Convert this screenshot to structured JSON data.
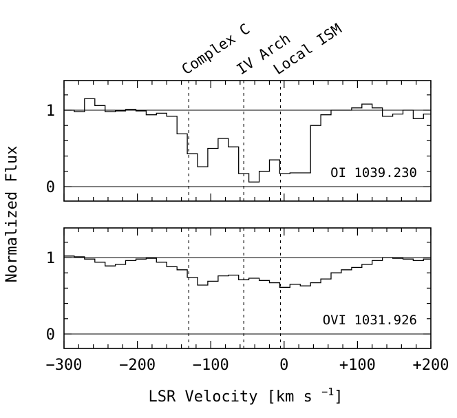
{
  "chart_data": {
    "type": "line",
    "title": "",
    "xlabel": "LSR Velocity [km s",
    "xlabel_sup": "−1",
    "xlabel_end": "]",
    "ylabel": "Normalized Flux",
    "xlim": [
      -300,
      200
    ],
    "x_ticks": [
      -300,
      -200,
      -100,
      0,
      100,
      200
    ],
    "x_tick_labels": [
      "−300",
      "−200",
      "−100",
      "0",
      "+100",
      "+200"
    ],
    "components": [
      {
        "name": "Complex C",
        "velocity": -130
      },
      {
        "name": "IV Arch",
        "velocity": -55
      },
      {
        "name": "Local ISM",
        "velocity": -5
      }
    ],
    "panels": [
      {
        "name": "OI 1039.230",
        "label": "OI  1039.230",
        "ylim": [
          -0.2,
          1.4
        ],
        "y_ticks": [
          0,
          1
        ],
        "y_tick_labels": [
          "0",
          "1"
        ],
        "reference_lines": [
          0,
          1
        ],
        "step_series": [
          {
            "x": -300,
            "y": 1.0
          },
          {
            "x": -286,
            "y": 0.98
          },
          {
            "x": -272,
            "y": 1.15
          },
          {
            "x": -258,
            "y": 1.06
          },
          {
            "x": -244,
            "y": 0.98
          },
          {
            "x": -230,
            "y": 0.99
          },
          {
            "x": -216,
            "y": 1.01
          },
          {
            "x": -202,
            "y": 0.99
          },
          {
            "x": -188,
            "y": 0.94
          },
          {
            "x": -174,
            "y": 0.96
          },
          {
            "x": -160,
            "y": 0.92
          },
          {
            "x": -146,
            "y": 0.69
          },
          {
            "x": -132,
            "y": 0.43
          },
          {
            "x": -118,
            "y": 0.26
          },
          {
            "x": -104,
            "y": 0.5
          },
          {
            "x": -90,
            "y": 0.63
          },
          {
            "x": -76,
            "y": 0.52
          },
          {
            "x": -62,
            "y": 0.17
          },
          {
            "x": -48,
            "y": 0.06
          },
          {
            "x": -34,
            "y": 0.2
          },
          {
            "x": -20,
            "y": 0.35
          },
          {
            "x": -6,
            "y": 0.17
          },
          {
            "x": 8,
            "y": 0.18
          },
          {
            "x": 22,
            "y": 0.18
          },
          {
            "x": 36,
            "y": 0.8
          },
          {
            "x": 50,
            "y": 0.94
          },
          {
            "x": 64,
            "y": 1.0
          },
          {
            "x": 78,
            "y": 1.0
          },
          {
            "x": 92,
            "y": 1.03
          },
          {
            "x": 106,
            "y": 1.08
          },
          {
            "x": 120,
            "y": 1.03
          },
          {
            "x": 134,
            "y": 0.92
          },
          {
            "x": 148,
            "y": 0.95
          },
          {
            "x": 162,
            "y": 1.0
          },
          {
            "x": 176,
            "y": 0.89
          },
          {
            "x": 190,
            "y": 0.95
          }
        ]
      },
      {
        "name": "OVI 1031.926",
        "label": "OVI  1031.926",
        "ylim": [
          -0.2,
          1.4
        ],
        "y_ticks": [
          0,
          1
        ],
        "y_tick_labels": [
          "0",
          "1"
        ],
        "reference_lines": [
          0,
          1
        ],
        "step_series": [
          {
            "x": -300,
            "y": 1.02
          },
          {
            "x": -286,
            "y": 1.01
          },
          {
            "x": -272,
            "y": 0.98
          },
          {
            "x": -258,
            "y": 0.94
          },
          {
            "x": -244,
            "y": 0.89
          },
          {
            "x": -230,
            "y": 0.91
          },
          {
            "x": -216,
            "y": 0.96
          },
          {
            "x": -202,
            "y": 0.98
          },
          {
            "x": -188,
            "y": 0.99
          },
          {
            "x": -174,
            "y": 0.94
          },
          {
            "x": -160,
            "y": 0.88
          },
          {
            "x": -146,
            "y": 0.84
          },
          {
            "x": -132,
            "y": 0.74
          },
          {
            "x": -118,
            "y": 0.64
          },
          {
            "x": -104,
            "y": 0.69
          },
          {
            "x": -90,
            "y": 0.76
          },
          {
            "x": -76,
            "y": 0.77
          },
          {
            "x": -62,
            "y": 0.71
          },
          {
            "x": -48,
            "y": 0.73
          },
          {
            "x": -34,
            "y": 0.7
          },
          {
            "x": -20,
            "y": 0.67
          },
          {
            "x": -6,
            "y": 0.61
          },
          {
            "x": 8,
            "y": 0.65
          },
          {
            "x": 22,
            "y": 0.63
          },
          {
            "x": 36,
            "y": 0.67
          },
          {
            "x": 50,
            "y": 0.72
          },
          {
            "x": 64,
            "y": 0.8
          },
          {
            "x": 78,
            "y": 0.84
          },
          {
            "x": 92,
            "y": 0.87
          },
          {
            "x": 106,
            "y": 0.91
          },
          {
            "x": 120,
            "y": 0.96
          },
          {
            "x": 134,
            "y": 1.0
          },
          {
            "x": 148,
            "y": 0.99
          },
          {
            "x": 162,
            "y": 0.98
          },
          {
            "x": 176,
            "y": 0.96
          },
          {
            "x": 190,
            "y": 0.98
          }
        ]
      }
    ]
  }
}
